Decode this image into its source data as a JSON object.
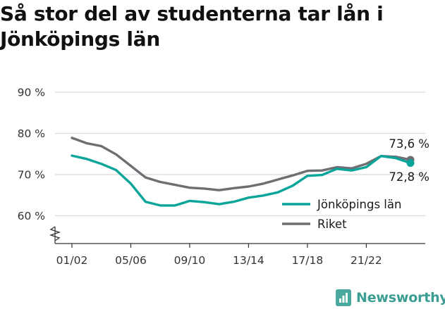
{
  "title": "Så stor del av studenterna tar lån i Jönköpings län",
  "brand": {
    "name": "Newsworthy",
    "icon": "bar-chart-logo-icon"
  },
  "colors": {
    "jonkoping": "#0aa59a",
    "riket": "#6e6e73",
    "grid": "#d9d9d9",
    "axis": "#333333"
  },
  "chart_data": {
    "type": "line",
    "title": "Så stor del av studenterna tar lån i Jönköpings län",
    "xlabel": "",
    "ylabel": "",
    "ylim": [
      55,
      90
    ],
    "y_ticks": [
      60,
      70,
      80,
      90
    ],
    "y_tick_labels": [
      "60 %",
      "70 %",
      "80 %",
      "90 %"
    ],
    "y_axis_break": true,
    "grid": true,
    "legend_position": "bottom-right",
    "x": [
      "01/02",
      "02/03",
      "03/04",
      "04/05",
      "05/06",
      "06/07",
      "07/08",
      "08/09",
      "09/10",
      "10/11",
      "11/12",
      "12/13",
      "13/14",
      "14/15",
      "15/16",
      "16/17",
      "17/18",
      "18/19",
      "19/20",
      "20/21",
      "21/22",
      "22/23",
      "23/24",
      "24/25"
    ],
    "x_tick_labels": [
      "01/02",
      "05/06",
      "09/10",
      "13/14",
      "17/18",
      "21/22"
    ],
    "series": [
      {
        "name": "Jönköpings län",
        "color": "#0aa59a",
        "values": [
          74.6,
          73.8,
          72.6,
          71.1,
          67.8,
          63.4,
          62.5,
          62.5,
          63.6,
          63.3,
          62.8,
          63.4,
          64.4,
          64.9,
          65.7,
          67.3,
          69.7,
          69.9,
          71.4,
          71.0,
          71.8,
          74.5,
          74.0,
          72.8
        ],
        "end_label": "72,8 %"
      },
      {
        "name": "Riket",
        "color": "#6e6e73",
        "values": [
          78.9,
          77.6,
          76.9,
          74.9,
          72.1,
          69.3,
          68.2,
          67.5,
          66.8,
          66.6,
          66.2,
          66.7,
          67.1,
          67.8,
          68.8,
          69.8,
          70.9,
          71.0,
          71.8,
          71.5,
          72.6,
          74.5,
          74.3,
          73.6
        ],
        "end_label": "73,6 %"
      }
    ]
  }
}
